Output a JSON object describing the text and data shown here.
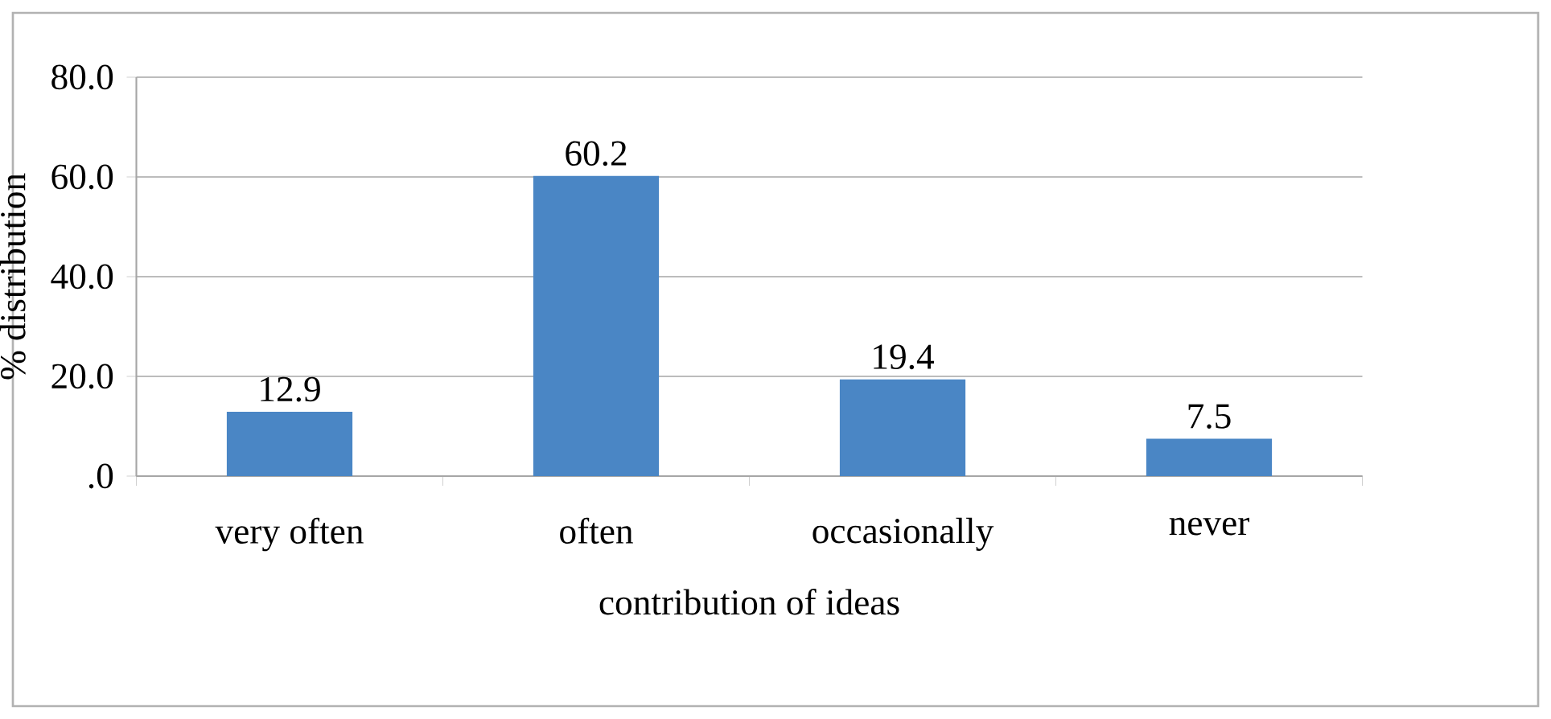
{
  "chart_data": {
    "type": "bar",
    "xlabel": "contribution of ideas",
    "ylabel": "% distribution",
    "categories": [
      "very often",
      "often",
      "occasionally",
      "never"
    ],
    "values": [
      12.9,
      60.2,
      19.4,
      7.5
    ],
    "color": "#4a86c5",
    "ylim": [
      0,
      80
    ],
    "yticks": [
      {
        "value": 0,
        "label": ".0"
      },
      {
        "value": 20,
        "label": "20.0"
      },
      {
        "value": 40,
        "label": "40.0"
      },
      {
        "value": 60,
        "label": "60.0"
      },
      {
        "value": 80,
        "label": "80.0"
      }
    ],
    "grid": "y",
    "data_labels": true
  }
}
